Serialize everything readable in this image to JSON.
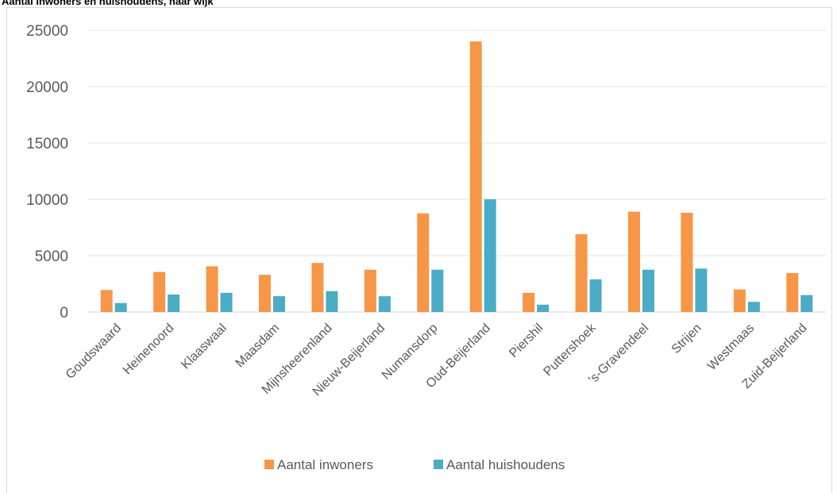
{
  "chart_data": {
    "type": "bar",
    "title": "Aantal inwoners en huishoudens, naar wijk",
    "categories": [
      "Goudswaard",
      "Heinenoord",
      "Klaaswaal",
      "Maasdam",
      "Mijnsheerenland",
      "Nieuw-Beijerland",
      "Numansdorp",
      "Oud-Beijerland",
      "Piershil",
      "Puttershoek",
      "'s-Gravendeel",
      "Strijen",
      "Westmaas",
      "Zuid-Beijerland"
    ],
    "series": [
      {
        "name": "Aantal inwoners",
        "color": "#F79646",
        "values": [
          1950,
          3550,
          4050,
          3300,
          4350,
          3750,
          8750,
          24000,
          1700,
          6900,
          8900,
          8800,
          2000,
          3450
        ]
      },
      {
        "name": "Aantal huishoudens",
        "color": "#4BACC6",
        "values": [
          800,
          1550,
          1700,
          1400,
          1850,
          1400,
          3750,
          10000,
          650,
          2900,
          3750,
          3850,
          900,
          1500
        ]
      }
    ],
    "ylim": [
      0,
      25000
    ],
    "yticks": [
      "0",
      "5000",
      "10000",
      "15000",
      "20000",
      "25000"
    ],
    "grid": true,
    "legend_position": "bottom"
  }
}
